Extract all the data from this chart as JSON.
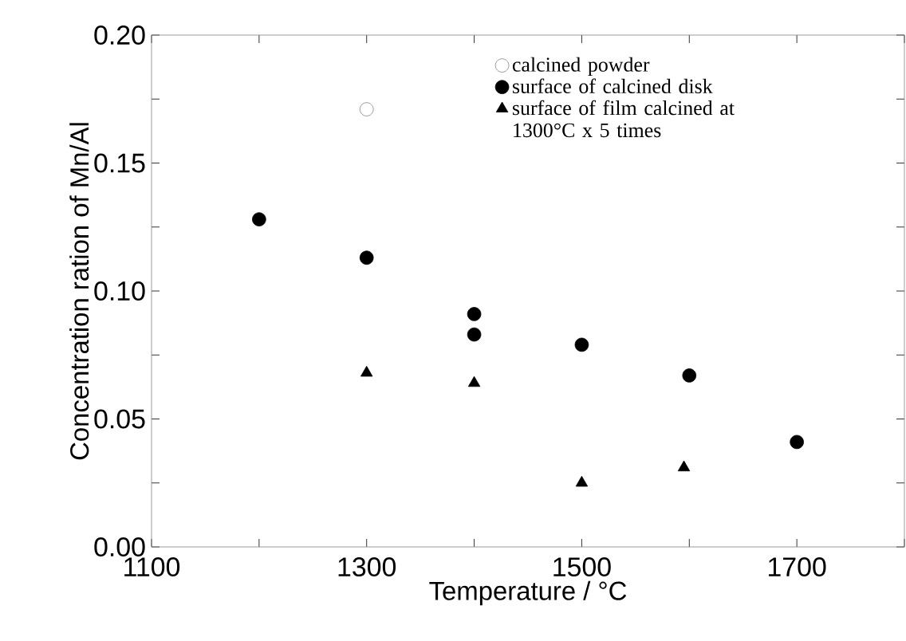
{
  "chart_data": {
    "type": "scatter",
    "xlabel": "Temperature / °C",
    "ylabel": "Concentration ration of Mn/Al",
    "series": [
      {
        "name": "calcined powder",
        "color": "#ffffff",
        "marker": "circle",
        "x": [
          1300
        ],
        "values": [
          0.171
        ]
      },
      {
        "name": "surface of calcined disk",
        "color": "#000000",
        "marker": "circle",
        "x": [
          1200,
          1300,
          1400,
          1400,
          1500,
          1600,
          1700
        ],
        "values": [
          0.128,
          0.113,
          0.091,
          0.083,
          0.079,
          0.067,
          0.041
        ]
      },
      {
        "name": "surface of film calcined at 1300°C x 5 times",
        "color": "#000000",
        "marker": "triangle",
        "x": [
          1300,
          1400,
          1500,
          1595
        ],
        "values": [
          0.068,
          0.064,
          0.025,
          0.031
        ]
      }
    ],
    "xlim": [
      1100,
      1800
    ],
    "xticks": [
      1100,
      {
        "value": 1200,
        "label": null
      },
      1300,
      {
        "value": 1400,
        "label": null
      },
      1500,
      {
        "value": 1600,
        "label": null
      },
      1700,
      {
        "value": 1800,
        "label": null
      }
    ],
    "ylim": [
      0,
      0.2
    ],
    "yticks": [
      {
        "value": 0,
        "label": "0.00"
      },
      {
        "value": 0.025,
        "label": null
      },
      {
        "value": 0.05,
        "label": "0.05"
      },
      {
        "value": 0.075,
        "label": null
      },
      {
        "value": 0.1,
        "label": "0.10"
      },
      {
        "value": 0.125,
        "label": null
      },
      {
        "value": 0.15,
        "label": "0.15"
      },
      {
        "value": 0.175,
        "label": null
      },
      {
        "value": 0.2,
        "label": "0.20"
      }
    ],
    "grid": false,
    "legend": "top right"
  }
}
